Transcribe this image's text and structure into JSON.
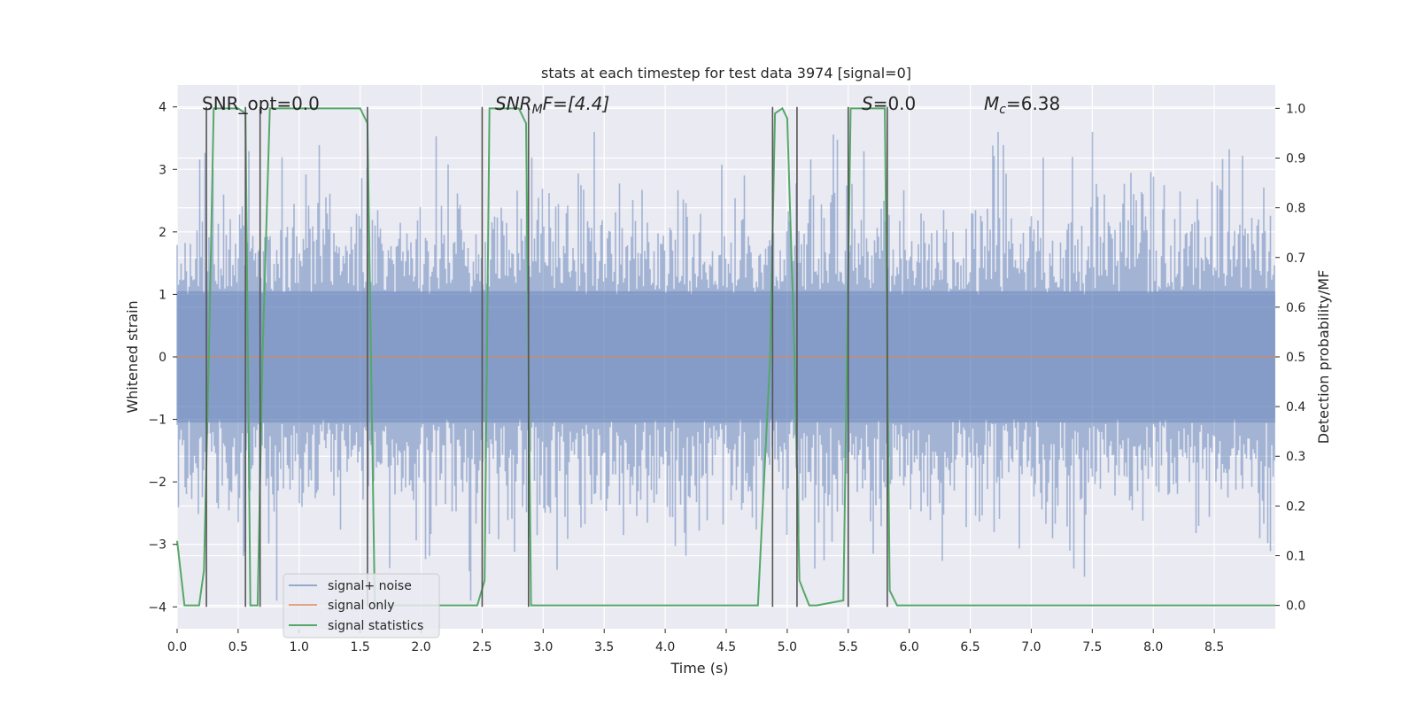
{
  "chart_data": {
    "type": "line",
    "title": "stats at each timestep for test data 3974 [signal=0]",
    "xlabel": "Time (s)",
    "ylabel": "Whitened strain",
    "y2label": "Detection probability/MF",
    "xlim": [
      0.0,
      9.0
    ],
    "ylim": [
      -4.35,
      4.35
    ],
    "y2lim": [
      -0.047,
      1.047
    ],
    "x_ticks": [
      "0.0",
      "0.5",
      "1.0",
      "1.5",
      "2.0",
      "2.5",
      "3.0",
      "3.5",
      "4.0",
      "4.5",
      "5.0",
      "5.5",
      "6.0",
      "6.5",
      "7.0",
      "7.5",
      "8.0",
      "8.5"
    ],
    "y_ticks": [
      "−4",
      "−3",
      "−2",
      "−1",
      "0",
      "1",
      "2",
      "3",
      "4"
    ],
    "y2_ticks": [
      "0.0",
      "0.1",
      "0.2",
      "0.3",
      "0.4",
      "0.5",
      "0.6",
      "0.7",
      "0.8",
      "0.9",
      "1.0"
    ],
    "grid": true,
    "annotations": {
      "snr_opt": "SNR_opt=0.0",
      "snr_mf_sym": "SNR",
      "snr_mf_sub": "M",
      "snr_mf_tail": "F=[4.4]",
      "s_sym": "S",
      "s_val": "=0.0",
      "mc_sym": "M",
      "mc_sub": "c",
      "mc_val": "=6.38"
    },
    "legend": {
      "placement": "lower-left",
      "entries": [
        "signal+ noise",
        "signal only",
        "signal statistics"
      ]
    },
    "series": [
      {
        "name": "signal+ noise",
        "color": "#4c72b0",
        "kind": "noise",
        "axis": "left",
        "x_range": [
          0.0,
          9.0
        ],
        "envelope": [
          -2.2,
          2.2
        ],
        "peak_range": [
          -3.9,
          3.6
        ]
      },
      {
        "name": "signal only",
        "color": "#dd8452",
        "axis": "left",
        "x": [
          0.0,
          9.0
        ],
        "y": [
          0.0,
          0.0
        ]
      },
      {
        "name": "signal statistics",
        "color": "#55a868",
        "axis": "right",
        "x": [
          0.0,
          0.06,
          0.18,
          0.22,
          0.26,
          0.3,
          0.5,
          0.56,
          0.6,
          0.66,
          0.7,
          0.76,
          1.5,
          1.56,
          1.62,
          2.46,
          2.52,
          2.56,
          2.8,
          2.86,
          2.9,
          2.96,
          3.0,
          4.76,
          4.86,
          4.9,
          4.96,
          5.0,
          5.06,
          5.1,
          5.18,
          5.24,
          5.46,
          5.52,
          5.56,
          5.8,
          5.84,
          5.9,
          5.96,
          9.0
        ],
        "y": [
          0.13,
          0.0,
          0.0,
          0.07,
          0.5,
          1.0,
          1.0,
          0.99,
          0.0,
          0.0,
          0.5,
          1.0,
          1.0,
          0.97,
          0.0,
          0.0,
          0.05,
          1.0,
          1.0,
          0.97,
          0.0,
          0.0,
          0.0,
          0.0,
          0.5,
          0.99,
          1.0,
          0.98,
          0.5,
          0.05,
          0.0,
          0.0,
          0.01,
          1.0,
          1.0,
          1.0,
          0.03,
          0.0,
          0.0,
          0.0
        ]
      }
    ],
    "vlines": {
      "color": "#555555",
      "x": [
        0.24,
        0.56,
        0.68,
        1.56,
        2.5,
        2.88,
        4.88,
        5.08,
        5.5,
        5.82
      ],
      "y_top": 4.0,
      "y_bottom": -4.0
    }
  }
}
